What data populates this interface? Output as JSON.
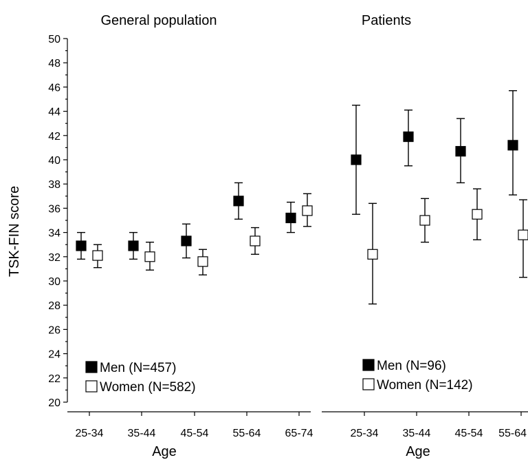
{
  "chart_data": [
    {
      "type": "scatter",
      "title": "General population",
      "xlabel": "Age",
      "ylabel": "TSK-FIN score",
      "ylim": [
        20,
        50
      ],
      "yticks": [
        20,
        22,
        24,
        26,
        28,
        30,
        32,
        34,
        36,
        38,
        40,
        42,
        44,
        46,
        48,
        50
      ],
      "categories": [
        "25-34",
        "35-44",
        "45-54",
        "55-64",
        "65-74"
      ],
      "legend_position": "bottom-left",
      "series": [
        {
          "name": "Men (N=457)",
          "marker": "filled-square",
          "color": "#000000",
          "values": [
            32.9,
            32.9,
            33.3,
            36.6,
            35.2
          ],
          "lower": [
            31.8,
            31.8,
            31.9,
            35.1,
            34.0
          ],
          "upper": [
            34.0,
            34.0,
            34.7,
            38.1,
            36.5
          ]
        },
        {
          "name": "Women (N=582)",
          "marker": "open-square",
          "color": "#000000",
          "values": [
            32.1,
            32.0,
            31.6,
            33.3,
            35.8
          ],
          "lower": [
            31.1,
            30.9,
            30.5,
            32.2,
            34.5
          ],
          "upper": [
            33.0,
            33.2,
            32.6,
            34.4,
            37.2
          ]
        }
      ]
    },
    {
      "type": "scatter",
      "title": "Patients",
      "xlabel": "Age",
      "ylim": [
        20,
        50
      ],
      "categories": [
        "25-34",
        "35-44",
        "45-54",
        "55-64"
      ],
      "legend_position": "bottom",
      "series": [
        {
          "name": "Men (N=96)",
          "marker": "filled-square",
          "color": "#000000",
          "values": [
            40.0,
            41.9,
            40.7,
            41.2
          ],
          "lower": [
            35.5,
            39.5,
            38.1,
            37.1
          ],
          "upper": [
            44.5,
            44.1,
            43.4,
            45.7
          ]
        },
        {
          "name": "Women (N=142)",
          "marker": "open-square",
          "color": "#000000",
          "values": [
            32.2,
            35.0,
            35.5,
            33.8
          ],
          "lower": [
            28.1,
            33.2,
            33.4,
            30.3
          ],
          "upper": [
            36.4,
            36.8,
            37.6,
            36.7
          ]
        }
      ]
    }
  ]
}
